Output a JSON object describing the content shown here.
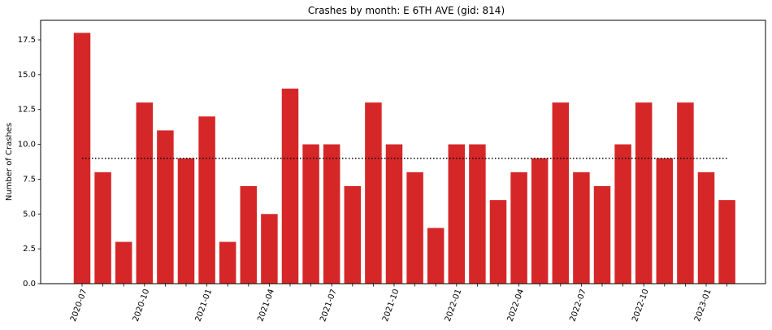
{
  "chart_data": {
    "type": "bar",
    "title": "Crashes by month: E 6TH AVE (gid: 814)",
    "xlabel": "",
    "ylabel": "Number of Crashes",
    "categories": [
      "2020-07",
      "2020-08",
      "2020-09",
      "2020-10",
      "2020-11",
      "2020-12",
      "2021-01",
      "2021-02",
      "2021-03",
      "2021-04",
      "2021-05",
      "2021-06",
      "2021-07",
      "2021-08",
      "2021-09",
      "2021-10",
      "2021-11",
      "2021-12",
      "2022-01",
      "2022-02",
      "2022-03",
      "2022-04",
      "2022-05",
      "2022-06",
      "2022-07",
      "2022-08",
      "2022-09",
      "2022-10",
      "2022-11",
      "2022-12",
      "2023-01",
      "2023-02"
    ],
    "values": [
      18,
      8,
      3,
      13,
      11,
      9,
      12,
      3,
      7,
      5,
      14,
      10,
      10,
      7,
      13,
      10,
      8,
      4,
      10,
      10,
      6,
      8,
      9,
      13,
      8,
      7,
      10,
      13,
      9,
      13,
      8,
      6
    ],
    "mean_line": 9,
    "xtick_labels": [
      "2020-07",
      "2020-10",
      "2021-01",
      "2021-04",
      "2021-07",
      "2021-10",
      "2022-01",
      "2022-04",
      "2022-07",
      "2022-10",
      "2023-01"
    ],
    "yticks": [
      "0.0",
      "2.5",
      "5.0",
      "7.5",
      "10.0",
      "12.5",
      "15.0",
      "17.5"
    ],
    "ylim": [
      0,
      18.9
    ],
    "grid": false,
    "bar_color": "#d62728",
    "mean_line_color": "#000000"
  }
}
